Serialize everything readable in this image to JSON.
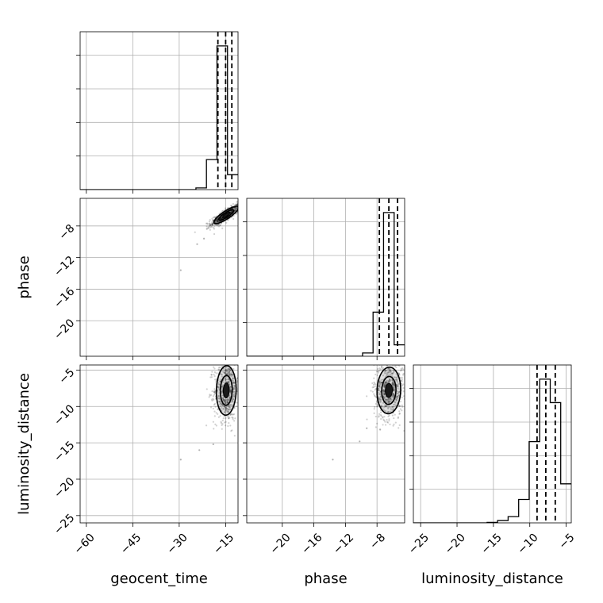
{
  "chart_data": {
    "type": "corner",
    "parameters": [
      "geocent_time",
      "phase",
      "luminosity_distance"
    ],
    "axes": {
      "geocent_time": {
        "label": "geocent_time",
        "range": [
          -62,
          -11
        ],
        "ticks": [
          -60,
          -45,
          -30,
          -15
        ],
        "tick_labels": [
          "−60",
          "−45",
          "−30",
          "−15"
        ]
      },
      "phase": {
        "label": "phase",
        "range": [
          -24.5,
          -4.5
        ],
        "ticks": [
          -20,
          -16,
          -12,
          -8
        ],
        "tick_labels": [
          "−20",
          "−16",
          "−12",
          "−8"
        ]
      },
      "luminosity_distance": {
        "label": "luminosity_distance",
        "range": [
          -26,
          -4.3
        ],
        "ticks": [
          -25,
          -20,
          -15,
          -10,
          -5
        ],
        "tick_labels": [
          "−25",
          "−20",
          "−15",
          "−10",
          "−5"
        ]
      }
    },
    "histograms": {
      "geocent_time": {
        "edges": [
          -62,
          -58.6,
          -55.2,
          -51.8,
          -48.4,
          -45,
          -41.6,
          -38.2,
          -34.8,
          -31.4,
          -28,
          -24.6,
          -21.2,
          -17.8,
          -14.4,
          -11
        ],
        "counts": [
          0,
          0,
          0,
          0,
          0,
          0,
          0,
          0,
          0,
          0,
          0,
          0.01,
          0.18,
          0.86,
          0.09
        ],
        "quantiles": [
          -17.5,
          -15.0,
          -13.0
        ]
      },
      "phase": {
        "edges": [
          -24.5,
          -23.17,
          -21.83,
          -20.5,
          -19.17,
          -17.83,
          -16.5,
          -15.17,
          -13.83,
          -12.5,
          -11.17,
          -9.83,
          -8.5,
          -7.17,
          -5.83,
          -4.5
        ],
        "counts": [
          0,
          0,
          0,
          0,
          0,
          0,
          0,
          0,
          0,
          0,
          0,
          0.02,
          0.27,
          0.88,
          0.07
        ],
        "quantiles": [
          -7.7,
          -6.5,
          -5.4
        ]
      },
      "luminosity_distance": {
        "edges": [
          -26,
          -24.55,
          -23.11,
          -21.66,
          -20.21,
          -18.77,
          -17.32,
          -15.87,
          -14.43,
          -12.98,
          -11.53,
          -10.09,
          -8.64,
          -7.19,
          -5.75,
          -4.3
        ],
        "counts": [
          0,
          0,
          0,
          0,
          0,
          0,
          0,
          0.003,
          0.015,
          0.04,
          0.15,
          0.52,
          0.92,
          0.77,
          0.25
        ],
        "quantiles": [
          -9.0,
          -7.8,
          -6.5
        ]
      }
    },
    "joint": [
      {
        "x": "geocent_time",
        "y": "phase",
        "center": [
          -14.8,
          -6.6
        ],
        "spread": [
          2.0,
          0.55
        ],
        "rho": 0.85,
        "outliers": [
          [
            -29.5,
            -13.6
          ],
          [
            -24.2,
            -10.3
          ],
          [
            -22.0,
            -9.6
          ]
        ]
      },
      {
        "x": "geocent_time",
        "y": "luminosity_distance",
        "center": [
          -14.8,
          -7.8
        ],
        "spread": [
          1.6,
          1.7
        ],
        "rho": 0.05,
        "outliers": [
          [
            -29.5,
            -17.3
          ],
          [
            -23.5,
            -16.0
          ],
          [
            -19.0,
            -15.2
          ]
        ]
      },
      {
        "x": "phase",
        "y": "luminosity_distance",
        "center": [
          -6.5,
          -7.8
        ],
        "spread": [
          0.75,
          1.6
        ],
        "rho": 0.05,
        "outliers": [
          [
            -13.6,
            -17.3
          ],
          [
            -10.2,
            -14.8
          ],
          [
            -9.3,
            -13.0
          ]
        ]
      }
    ],
    "grid": true
  }
}
